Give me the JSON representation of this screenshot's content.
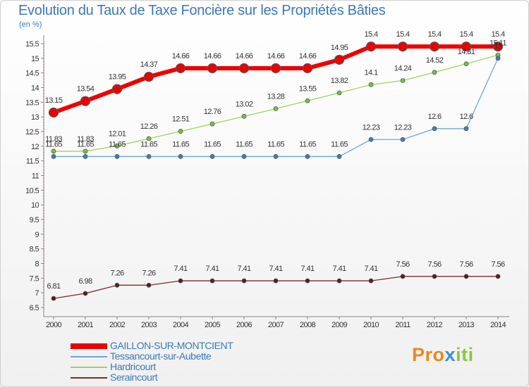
{
  "title": "Evolution du Taux de Taxe Foncière sur les Propriétés Bâties",
  "unit_label": "(en %)",
  "logo": {
    "text": "Proxiti",
    "letters": [
      {
        "ch": "P",
        "color": "#e8891f"
      },
      {
        "ch": "r",
        "color": "#e8891f"
      },
      {
        "ch": "o",
        "color": "#e8891f"
      },
      {
        "ch": "x",
        "color": "#3c8fd0"
      },
      {
        "ch": "i",
        "color": "#8ec63f"
      },
      {
        "ch": "t",
        "color": "#8ec63f"
      },
      {
        "ch": "i",
        "color": "#8ec63f"
      }
    ]
  },
  "chart_data": {
    "type": "line",
    "title": "Evolution du Taux de Taxe Foncière sur les Propriétés Bâties",
    "ylabel": "(en %)",
    "xlabel": "",
    "ylim": [
      6.5,
      15.5
    ],
    "grid": false,
    "legend_position": "bottom-left",
    "x": [
      "2000",
      "2001",
      "2002",
      "2003",
      "2004",
      "2005",
      "2006",
      "2007",
      "2008",
      "2009",
      "2010",
      "2011",
      "2012",
      "2013",
      "2014"
    ],
    "y_ticks": [
      "6.5",
      "7",
      "7.5",
      "8",
      "8.5",
      "9",
      "9.5",
      "10",
      "10.5",
      "11",
      "11.5",
      "12",
      "12.5",
      "13",
      "13.5",
      "14",
      "14.5",
      "15",
      "15.5"
    ],
    "series": [
      {
        "name": "GAILLON-SUR-MONTCIENT",
        "color": "#ee0000",
        "values": [
          13.15,
          13.54,
          13.95,
          14.37,
          14.66,
          14.66,
          14.66,
          14.66,
          14.66,
          14.95,
          15.4,
          15.4,
          15.4,
          15.4,
          15.4
        ],
        "labels": [
          "13.15",
          "13.54",
          "13.95",
          "14.37",
          "14.66",
          "14.66",
          "14.66",
          "14.66",
          "14.66",
          "14.95",
          "15.4",
          "15.4",
          "15.4",
          "15.4",
          "15.4"
        ]
      },
      {
        "name": "Tessancourt-sur-Aubette",
        "color": "#6ea6d6",
        "values": [
          11.65,
          11.65,
          11.65,
          11.65,
          11.65,
          11.65,
          11.65,
          11.65,
          11.65,
          11.65,
          12.23,
          12.23,
          12.6,
          12.6,
          15.0
        ],
        "labels": [
          "11.65",
          "11.65",
          "11.65",
          "11.65",
          "11.65",
          "11.65",
          "11.65",
          "11.65",
          "11.65",
          "11.65",
          "12.23",
          "12.23",
          "12.6",
          "12.6",
          "15"
        ]
      },
      {
        "name": "Hardricourt",
        "color": "#9ed35e",
        "values": [
          11.83,
          11.83,
          12.01,
          12.26,
          12.51,
          12.76,
          13.02,
          13.28,
          13.55,
          13.82,
          14.1,
          14.24,
          14.52,
          14.81,
          15.11
        ],
        "labels": [
          "11.83",
          "11.83",
          "12.01",
          "12.26",
          "12.51",
          "12.76",
          "13.02",
          "13.28",
          "13.55",
          "13.82",
          "14.1",
          "14.24",
          "14.52",
          "14.81",
          "15.11"
        ]
      },
      {
        "name": "Seraincourt",
        "color": "#7a2a2a",
        "values": [
          6.81,
          6.98,
          7.26,
          7.26,
          7.41,
          7.41,
          7.41,
          7.41,
          7.41,
          7.41,
          7.41,
          7.56,
          7.56,
          7.56,
          7.56
        ],
        "labels": [
          "6.81",
          "6.98",
          "7.26",
          "7.26",
          "7.41",
          "7.41",
          "7.41",
          "7.41",
          "7.41",
          "7.41",
          "7.41",
          "7.56",
          "7.56",
          "7.56",
          "7.56"
        ]
      }
    ]
  }
}
